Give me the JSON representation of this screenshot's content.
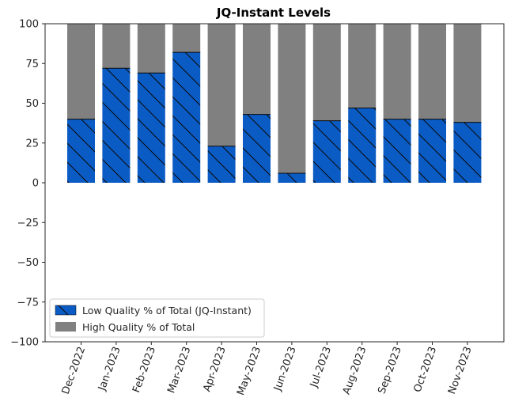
{
  "chart_data": {
    "type": "bar",
    "title": "JQ-Instant Levels",
    "xlabel": "",
    "ylabel": "",
    "ylim": [
      -100,
      100
    ],
    "yticks": [
      100,
      75,
      50,
      25,
      0,
      -25,
      -50,
      -75,
      -100
    ],
    "categories": [
      "Dec-2022",
      "Jan-2023",
      "Feb-2023",
      "Mar-2023",
      "Apr-2023",
      "May-2023",
      "Jun-2023",
      "Jul-2023",
      "Aug-2023",
      "Sep-2023",
      "Oct-2023",
      "Nov-2023"
    ],
    "stacked": true,
    "series": [
      {
        "name": "Low Quality % of Total (JQ-Instant)",
        "color": "#0b5bc4",
        "hatch": "diagonal",
        "values": [
          40,
          72,
          69,
          82,
          23,
          43,
          6,
          39,
          47,
          40,
          40,
          38
        ]
      },
      {
        "name": "High Quality % of Total",
        "color": "#808080",
        "values": [
          60,
          28,
          31,
          18,
          77,
          57,
          94,
          61,
          53,
          60,
          60,
          62
        ]
      }
    ],
    "legend_position": "lower-left",
    "grid": false
  }
}
